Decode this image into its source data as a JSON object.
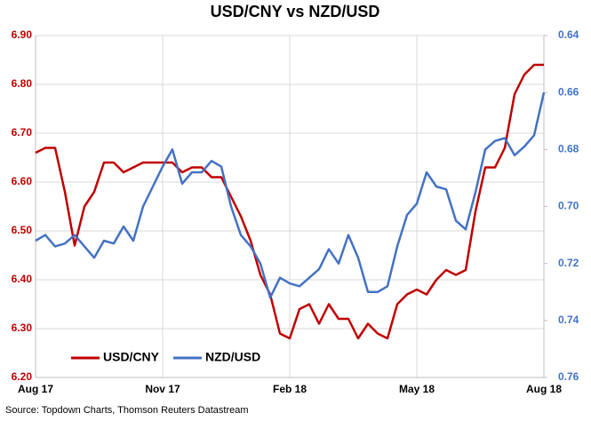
{
  "chart_data": {
    "type": "line",
    "title": "USD/CNY vs NZD/USD",
    "source": "Source: Topdown Charts, Thomson Reuters Datastream",
    "categories": [
      "Aug 17",
      null,
      null,
      null,
      null,
      null,
      null,
      null,
      null,
      null,
      null,
      null,
      null,
      "Nov 17",
      null,
      null,
      null,
      null,
      null,
      null,
      null,
      null,
      null,
      null,
      null,
      null,
      "Feb 18",
      null,
      null,
      null,
      null,
      null,
      null,
      null,
      null,
      null,
      null,
      null,
      null,
      "May 18",
      null,
      null,
      null,
      null,
      null,
      null,
      null,
      null,
      null,
      null,
      null,
      null,
      "Aug 18"
    ],
    "series": [
      {
        "name": "USD/CNY",
        "color": "#c00000",
        "values": [
          6.66,
          6.67,
          6.67,
          6.58,
          6.47,
          6.55,
          6.58,
          6.64,
          6.64,
          6.62,
          6.63,
          6.64,
          6.64,
          6.64,
          6.64,
          6.62,
          6.63,
          6.63,
          6.61,
          6.61,
          6.57,
          6.53,
          6.48,
          6.41,
          6.37,
          6.29,
          6.28,
          6.34,
          6.35,
          6.31,
          6.35,
          6.32,
          6.32,
          6.28,
          6.31,
          6.29,
          6.28,
          6.35,
          6.37,
          6.38,
          6.37,
          6.4,
          6.42,
          6.41,
          6.42,
          6.54,
          6.63,
          6.63,
          6.67,
          6.78,
          6.82,
          6.84,
          6.84
        ]
      },
      {
        "name": "NZD/USD",
        "color": "#4472c4",
        "axis": "y2",
        "values": [
          0.712,
          0.71,
          0.714,
          0.713,
          0.71,
          0.714,
          0.718,
          0.712,
          0.713,
          0.707,
          0.712,
          0.7,
          0.693,
          0.686,
          0.68,
          0.692,
          0.688,
          0.688,
          0.684,
          0.686,
          0.7,
          0.71,
          0.714,
          0.72,
          0.732,
          0.725,
          0.727,
          0.728,
          0.725,
          0.722,
          0.715,
          0.72,
          0.71,
          0.718,
          0.73,
          0.73,
          0.728,
          0.714,
          0.703,
          0.699,
          0.688,
          0.693,
          0.694,
          0.705,
          0.708,
          0.695,
          0.68,
          0.677,
          0.676,
          0.682,
          0.679,
          0.675,
          0.66
        ]
      }
    ],
    "ylim": [
      6.2,
      6.9
    ],
    "yticks": [
      {
        "value": 6.2,
        "label": "6.20"
      },
      {
        "value": 6.3,
        "label": "6.30"
      },
      {
        "value": 6.4,
        "label": "6.40"
      },
      {
        "value": 6.5,
        "label": "6.50"
      },
      {
        "value": 6.6,
        "label": "6.60"
      },
      {
        "value": 6.7,
        "label": "6.70"
      },
      {
        "value": 6.8,
        "label": "6.80"
      },
      {
        "value": 6.9,
        "label": "6.90"
      }
    ],
    "y2lim": [
      0.64,
      0.76
    ],
    "y2_inverted": true,
    "y2ticks": [
      0.64,
      0.66,
      0.68,
      {
        "value": 0.7,
        "label": "0.70"
      },
      0.72,
      0.74,
      0.76
    ],
    "grid": true,
    "legend": "lower left"
  }
}
